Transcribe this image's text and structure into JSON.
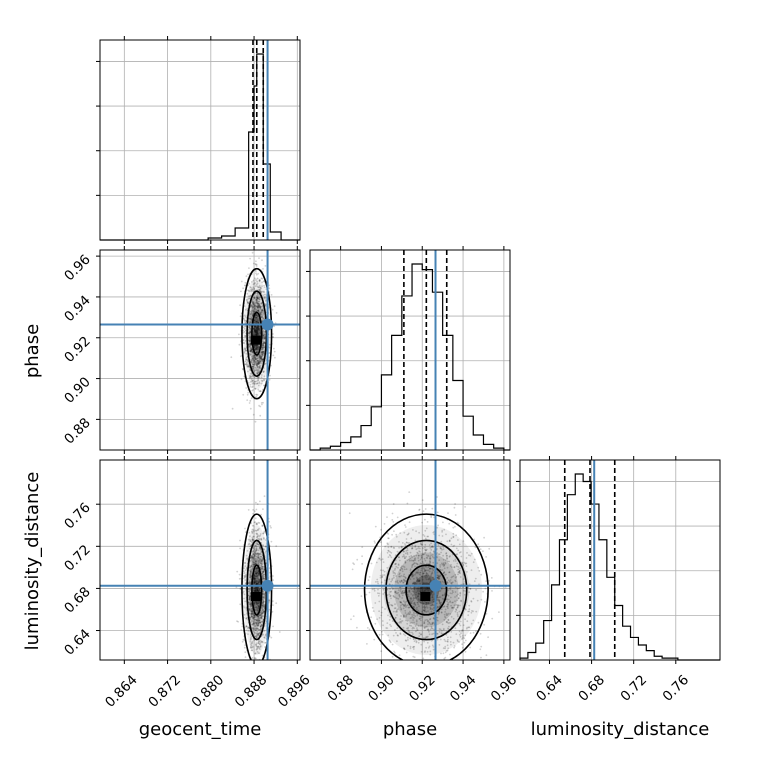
{
  "chart_data": {
    "type": "corner",
    "parameters": [
      "geocent_time",
      "phase",
      "luminosity_distance"
    ],
    "axis_labels": {
      "x": [
        "geocent_time",
        "phase",
        "luminosity_distance"
      ],
      "y": [
        "phase",
        "luminosity_distance"
      ]
    },
    "ranges": {
      "geocent_time": [
        0.8595,
        0.8965
      ],
      "phase": [
        0.865,
        0.963
      ],
      "luminosity_distance": [
        0.612,
        0.802
      ]
    },
    "ticks": {
      "geocent_time": [
        "0.864",
        "0.872",
        "0.880",
        "0.888",
        "0.896"
      ],
      "phase": [
        "0.88",
        "0.90",
        "0.92",
        "0.94",
        "0.96"
      ],
      "luminosity_distance": [
        "0.64",
        "0.68",
        "0.72",
        "0.76"
      ]
    },
    "truths": {
      "geocent_time": 0.8905,
      "phase": 0.9265,
      "luminosity_distance": 0.6825
    },
    "quantiles": {
      "geocent_time": [
        0.8878,
        0.8885,
        0.8897
      ],
      "phase": [
        0.911,
        0.922,
        0.932
      ],
      "luminosity_distance": [
        0.6545,
        0.6785,
        0.702
      ]
    },
    "histograms": {
      "geocent_time": {
        "edges": [
          0.8595,
          0.862,
          0.8645,
          0.867,
          0.8695,
          0.872,
          0.8745,
          0.877,
          0.8795,
          0.882,
          0.8845,
          0.887,
          0.888,
          0.8885,
          0.8897,
          0.891,
          0.893,
          0.8965
        ],
        "counts": [
          0,
          0,
          0,
          0,
          0,
          0,
          0,
          0,
          1,
          2,
          6,
          54,
          77,
          93,
          38,
          4,
          0
        ]
      },
      "phase": {
        "edges": [
          0.865,
          0.87,
          0.875,
          0.88,
          0.885,
          0.89,
          0.895,
          0.9,
          0.905,
          0.91,
          0.915,
          0.92,
          0.925,
          0.93,
          0.935,
          0.94,
          0.945,
          0.95,
          0.955,
          0.96,
          0.963
        ],
        "counts": [
          0,
          1,
          2,
          4,
          7,
          13,
          23,
          40,
          61,
          82,
          99,
          96,
          84,
          61,
          37,
          18,
          8,
          3,
          1,
          0
        ]
      },
      "luminosity_distance": {
        "edges": [
          0.612,
          0.6195,
          0.627,
          0.6345,
          0.642,
          0.6495,
          0.657,
          0.6645,
          0.672,
          0.6795,
          0.687,
          0.6945,
          0.702,
          0.7095,
          0.717,
          0.7245,
          0.732,
          0.7395,
          0.747,
          0.7545,
          0.762,
          0.802
        ],
        "counts": [
          1,
          4,
          9,
          21,
          40,
          64,
          88,
          99,
          95,
          83,
          64,
          44,
          29,
          18,
          12,
          8,
          5,
          2,
          1,
          1,
          0
        ]
      }
    },
    "contour_levels": [
      0.39,
      0.86,
      0.99
    ],
    "colors": {
      "truth": "#4682b4",
      "contour": "#000000",
      "grid": "#b0b0b0",
      "samples": "#000000"
    },
    "grid": true
  }
}
